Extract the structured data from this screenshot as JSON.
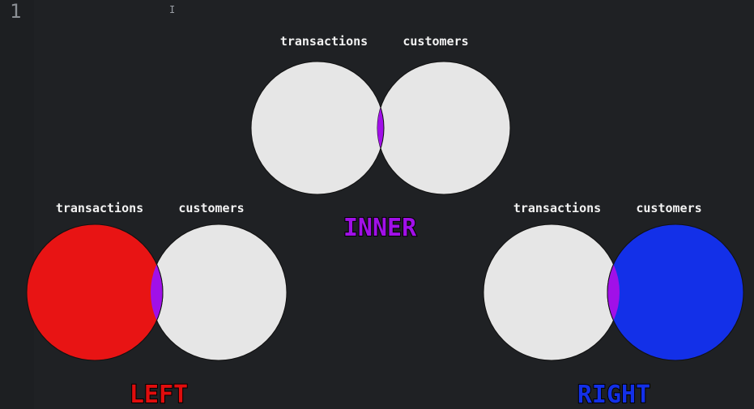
{
  "editor": {
    "line_number": "1",
    "cursor_glyph": "I"
  },
  "colors": {
    "background": "#1f2124",
    "circle": "#e6e6e6",
    "intersection": "#a110e8",
    "left_fill": "#e81414",
    "right_fill": "#1330e8",
    "inner_title": "#a110e8",
    "left_title": "#e00d0d",
    "right_title": "#1330e8"
  },
  "diagrams": {
    "inner": {
      "title": "INNER",
      "left_set": "transactions",
      "right_set": "customers"
    },
    "left": {
      "title": "LEFT",
      "left_set": "transactions",
      "right_set": "customers"
    },
    "right": {
      "title": "RIGHT",
      "left_set": "transactions",
      "right_set": "customers"
    }
  }
}
